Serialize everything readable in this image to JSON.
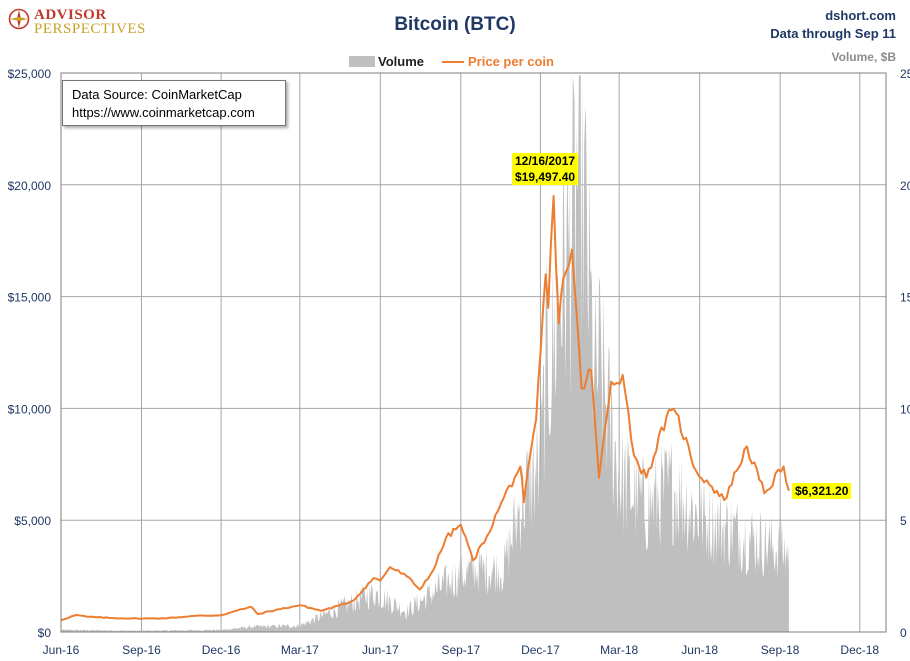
{
  "logo": {
    "line1": "ADVISOR",
    "line2": "PERSPECTIVES"
  },
  "header": {
    "title": "Bitcoin (BTC)",
    "site": "dshort.com",
    "data_through": "Data through Sep 11"
  },
  "legend": {
    "volume": "Volume",
    "price": "Price per coin"
  },
  "source": {
    "line1": "Data Source: CoinMarketCap",
    "line2": "https://www.coinmarketcap.com"
  },
  "annotations": {
    "peak_date": "12/16/2017",
    "peak_value": "$19,497.40",
    "last_value": "$6,321.20"
  },
  "colors": {
    "price": "#ed7d31",
    "volume": "#bfbfbf",
    "grid": "#a6a6a6",
    "callout": "#ffff00"
  },
  "chart_data": {
    "type": "line+area",
    "title": "Bitcoin (BTC)",
    "x_range": [
      "2016-06-01",
      "2018-12-31"
    ],
    "x_tick_labels": [
      "Jun-16",
      "Sep-16",
      "Dec-16",
      "Mar-17",
      "Jun-17",
      "Sep-17",
      "Dec-17",
      "Mar-18",
      "Jun-18",
      "Sep-18",
      "Dec-18"
    ],
    "x_tick_dates": [
      "2016-06-01",
      "2016-09-01",
      "2016-12-01",
      "2017-03-01",
      "2017-06-01",
      "2017-09-01",
      "2017-12-01",
      "2018-03-01",
      "2018-06-01",
      "2018-09-01",
      "2018-12-01"
    ],
    "y_left": {
      "label": "",
      "range": [
        0,
        25000
      ],
      "tick_labels": [
        "$0",
        "$5,000",
        "$10,000",
        "$15,000",
        "$20,000",
        "$25,000"
      ],
      "tick_values": [
        0,
        5000,
        10000,
        15000,
        20000,
        25000
      ]
    },
    "y_right": {
      "label": "Volume, $B",
      "range": [
        0,
        25
      ],
      "tick_labels": [
        "0",
        "5",
        "10",
        "15",
        "20",
        "25"
      ],
      "tick_values": [
        0,
        5,
        10,
        15,
        20,
        25
      ]
    },
    "series": [
      {
        "name": "Price per coin",
        "axis": "left",
        "points": [
          [
            "2016-06-01",
            530
          ],
          [
            "2016-06-18",
            760
          ],
          [
            "2016-07-01",
            680
          ],
          [
            "2016-08-01",
            620
          ],
          [
            "2016-09-01",
            600
          ],
          [
            "2016-10-01",
            620
          ],
          [
            "2016-11-01",
            720
          ],
          [
            "2016-12-01",
            750
          ],
          [
            "2017-01-04",
            1130
          ],
          [
            "2017-01-12",
            800
          ],
          [
            "2017-02-01",
            980
          ],
          [
            "2017-03-01",
            1200
          ],
          [
            "2017-03-25",
            950
          ],
          [
            "2017-04-15",
            1180
          ],
          [
            "2017-05-01",
            1400
          ],
          [
            "2017-05-24",
            2400
          ],
          [
            "2017-06-01",
            2300
          ],
          [
            "2017-06-12",
            2900
          ],
          [
            "2017-07-01",
            2500
          ],
          [
            "2017-07-16",
            1900
          ],
          [
            "2017-08-01",
            2800
          ],
          [
            "2017-08-15",
            4200
          ],
          [
            "2017-09-01",
            4800
          ],
          [
            "2017-09-15",
            3200
          ],
          [
            "2017-10-01",
            4300
          ],
          [
            "2017-10-20",
            6000
          ],
          [
            "2017-11-08",
            7400
          ],
          [
            "2017-11-12",
            5800
          ],
          [
            "2017-11-26",
            9500
          ],
          [
            "2017-12-07",
            16000
          ],
          [
            "2017-12-10",
            14500
          ],
          [
            "2017-12-16",
            19497
          ],
          [
            "2017-12-22",
            13800
          ],
          [
            "2017-12-27",
            15800
          ],
          [
            "2018-01-06",
            17100
          ],
          [
            "2018-01-17",
            10900
          ],
          [
            "2018-01-28",
            11700
          ],
          [
            "2018-02-06",
            6900
          ],
          [
            "2018-02-20",
            11200
          ],
          [
            "2018-03-05",
            11500
          ],
          [
            "2018-03-18",
            7900
          ],
          [
            "2018-04-01",
            6900
          ],
          [
            "2018-04-24",
            9600
          ],
          [
            "2018-05-05",
            9800
          ],
          [
            "2018-05-28",
            7200
          ],
          [
            "2018-06-15",
            6500
          ],
          [
            "2018-06-29",
            5900
          ],
          [
            "2018-07-25",
            8300
          ],
          [
            "2018-08-14",
            6200
          ],
          [
            "2018-09-05",
            7400
          ],
          [
            "2018-09-11",
            6321
          ]
        ]
      },
      {
        "name": "Volume",
        "axis": "right",
        "unit": "$B",
        "points": [
          [
            "2016-06-01",
            0.1
          ],
          [
            "2016-09-01",
            0.06
          ],
          [
            "2016-12-01",
            0.1
          ],
          [
            "2017-01-05",
            0.25
          ],
          [
            "2017-03-01",
            0.3
          ],
          [
            "2017-05-25",
            1.9
          ],
          [
            "2017-07-01",
            1.0
          ],
          [
            "2017-08-20",
            2.5
          ],
          [
            "2017-09-15",
            3.0
          ],
          [
            "2017-10-20",
            3.0
          ],
          [
            "2017-11-10",
            6.5
          ],
          [
            "2017-12-01",
            8.0
          ],
          [
            "2017-12-08",
            12.8
          ],
          [
            "2017-12-16",
            13.5
          ],
          [
            "2017-12-22",
            16.5
          ],
          [
            "2018-01-06",
            19.0
          ],
          [
            "2018-01-16",
            23.8
          ],
          [
            "2018-02-01",
            12.0
          ],
          [
            "2018-02-06",
            13.0
          ],
          [
            "2018-03-01",
            7.5
          ],
          [
            "2018-04-01",
            6.0
          ],
          [
            "2018-05-01",
            7.0
          ],
          [
            "2018-06-01",
            5.5
          ],
          [
            "2018-07-01",
            5.0
          ],
          [
            "2018-08-01",
            4.5
          ],
          [
            "2018-09-11",
            3.8
          ]
        ]
      }
    ],
    "annotations": [
      {
        "date": "2017-12-16",
        "text": [
          "12/16/2017",
          "$19,497.40"
        ]
      },
      {
        "date": "2018-09-11",
        "text": [
          "$6,321.20"
        ]
      }
    ]
  }
}
